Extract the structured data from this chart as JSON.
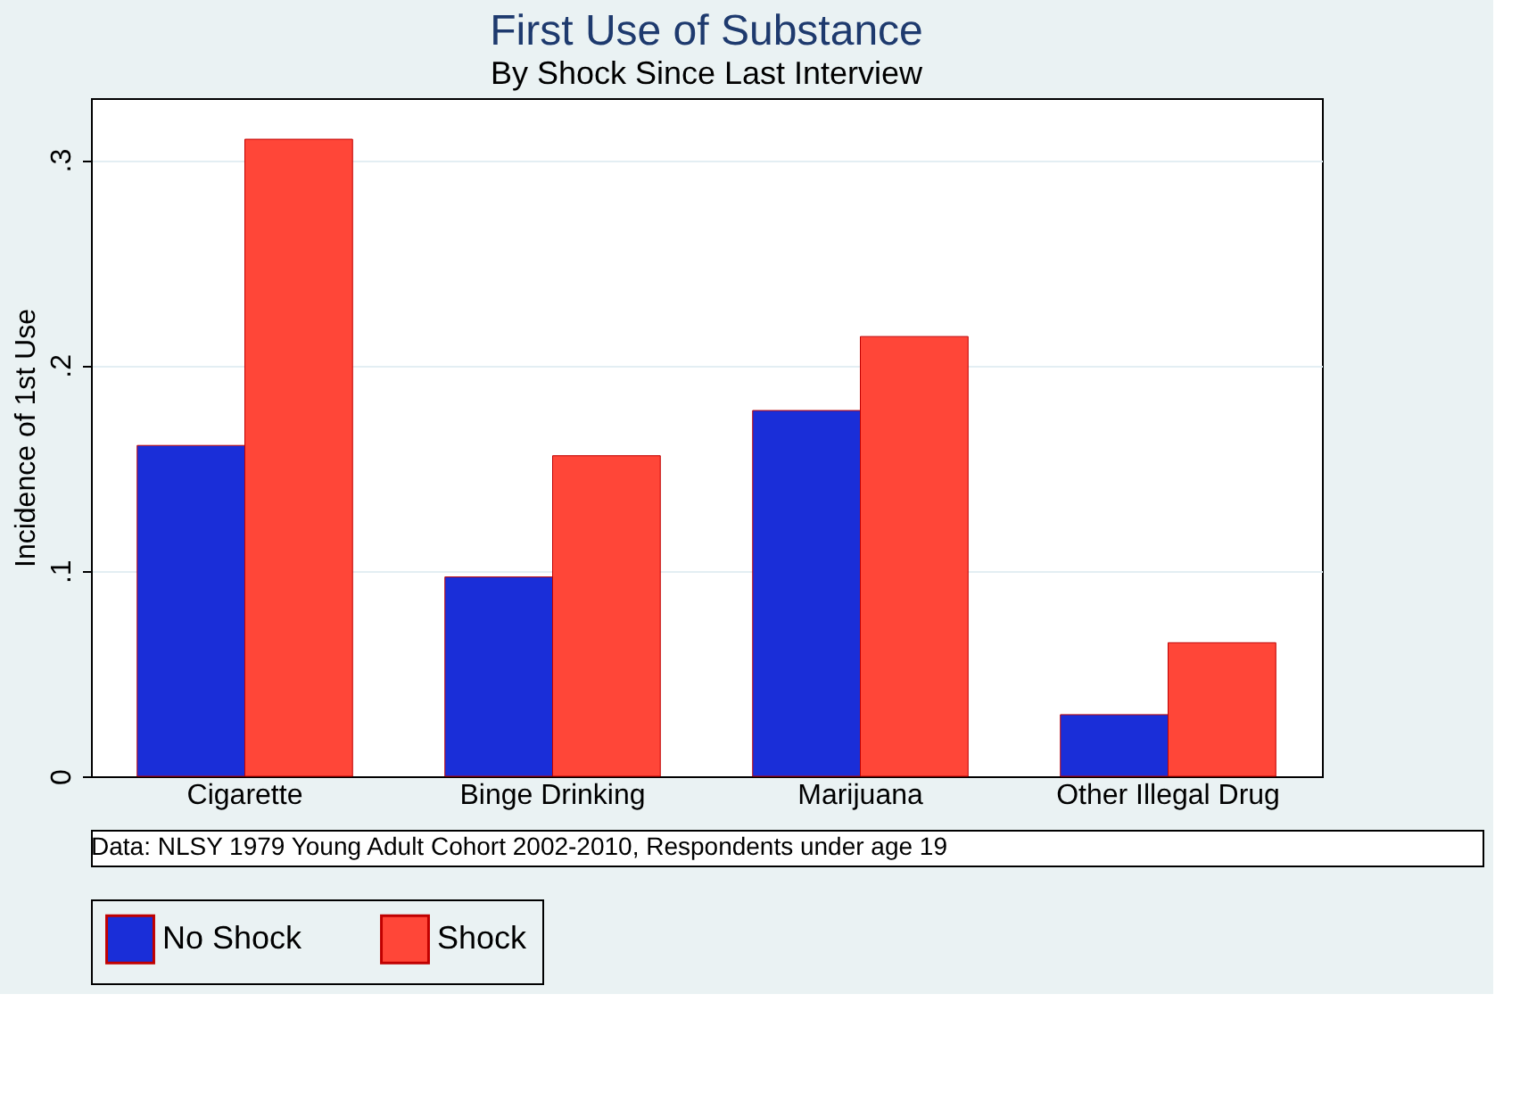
{
  "chart_data": {
    "type": "bar",
    "title": "First Use of Substance",
    "subtitle": "By Shock Since Last Interview",
    "ylabel": "Incidence of 1st Use",
    "categories": [
      "Cigarette",
      "Binge Drinking",
      "Marijuana",
      "Other Illegal Drug"
    ],
    "series": [
      {
        "name": "No Shock",
        "color": "#1a2ed8",
        "values": [
          0.161,
          0.097,
          0.178,
          0.03
        ]
      },
      {
        "name": "Shock",
        "color": "#ff4638",
        "values": [
          0.31,
          0.156,
          0.214,
          0.065
        ]
      }
    ],
    "ylim": [
      0,
      0.33
    ],
    "yticks": [
      {
        "value": 0,
        "label": "0"
      },
      {
        "value": 0.1,
        "label": ".1"
      },
      {
        "value": 0.2,
        "label": ".2"
      },
      {
        "value": 0.3,
        "label": ".3"
      }
    ],
    "grid": "y",
    "legend": "bottom",
    "annotations": [
      "Data: NLSY 1979 Young Adult Cohort 2002-2010, Respondents under age 19"
    ]
  }
}
